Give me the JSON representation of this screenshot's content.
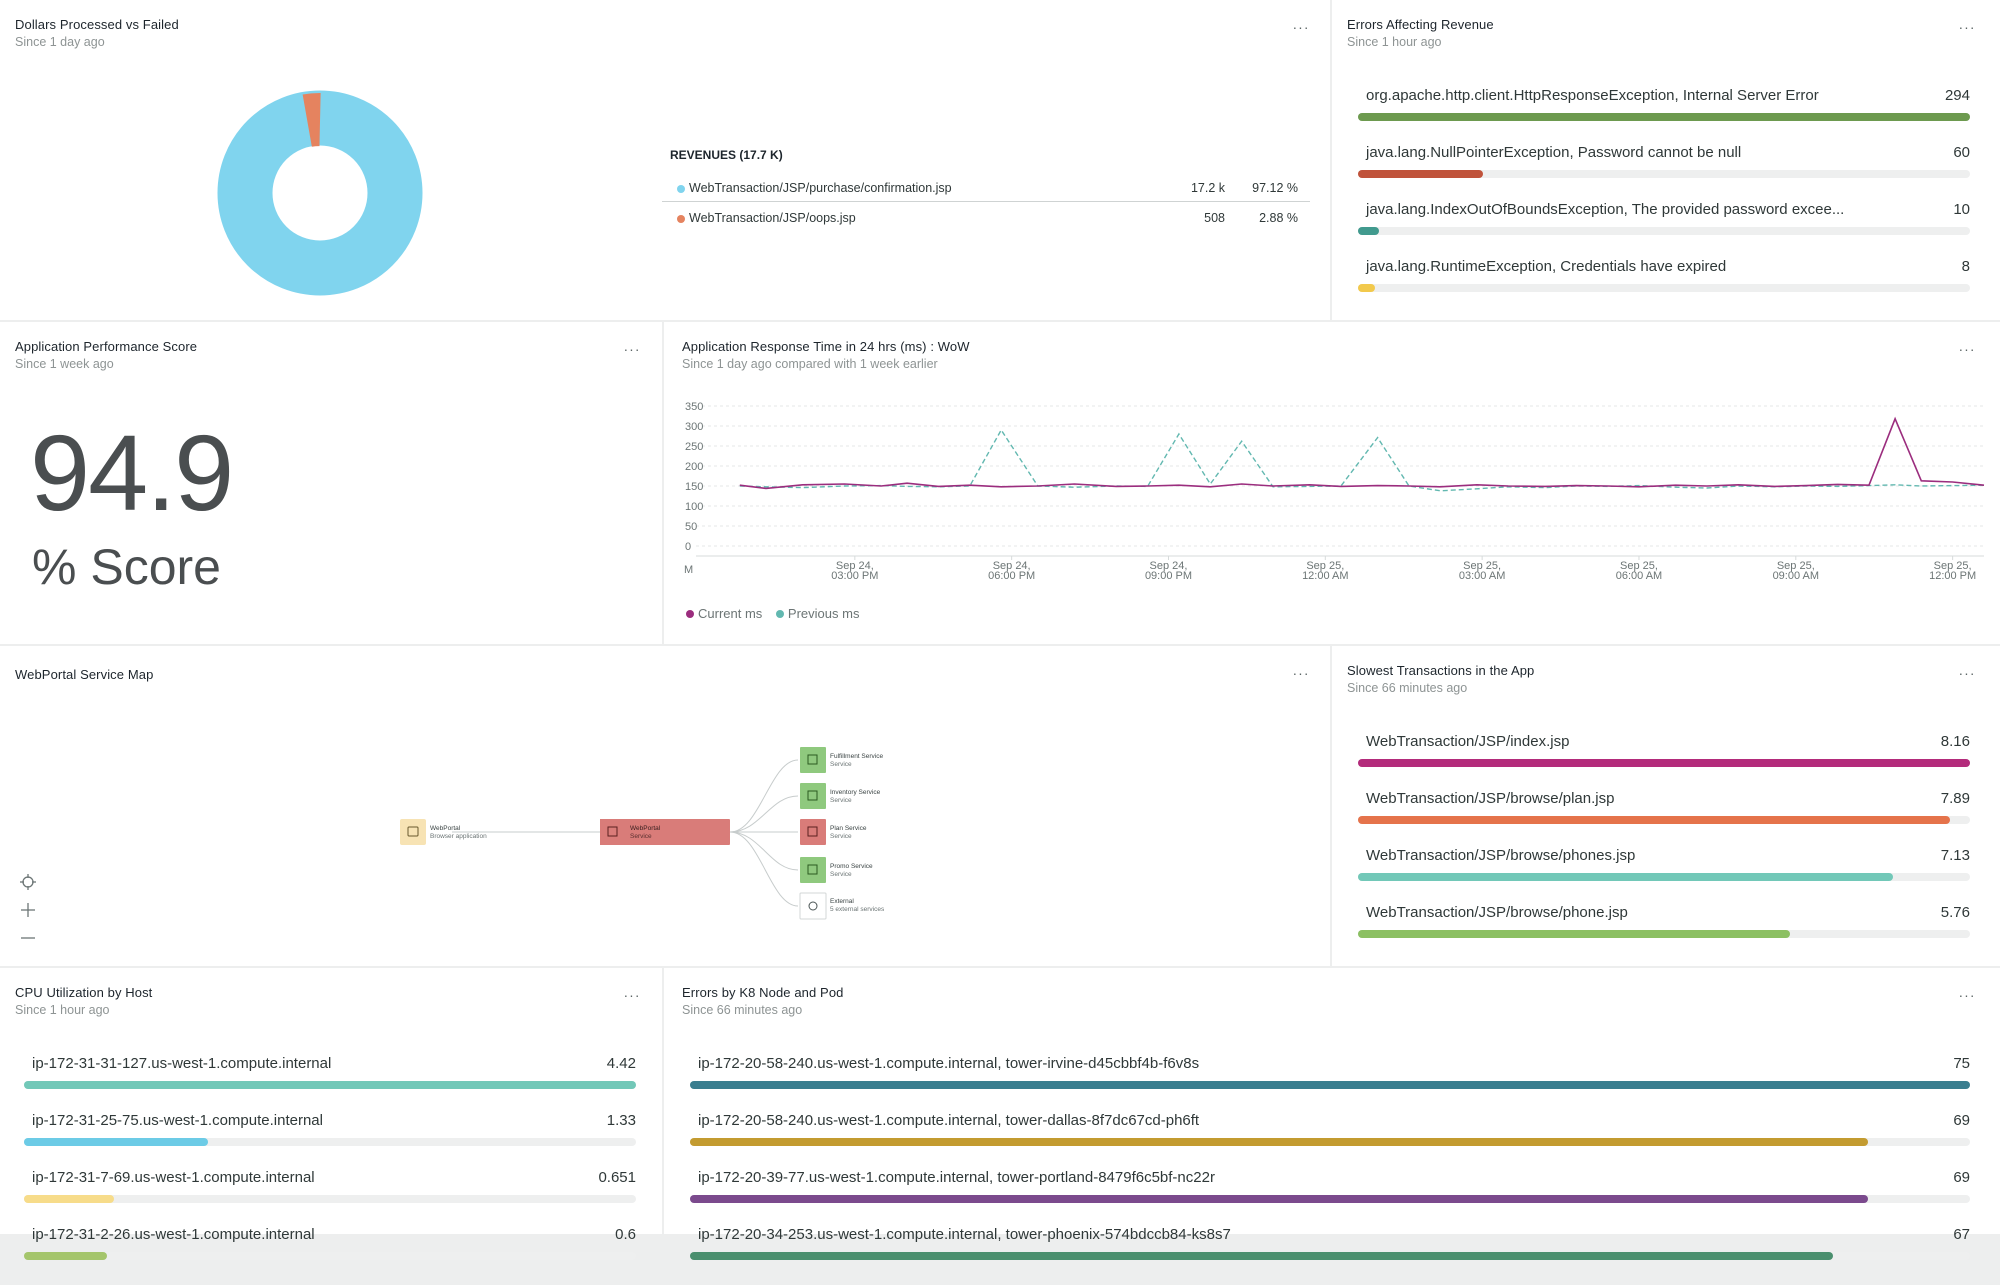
{
  "colors": {
    "menu_glyph": "#5b6565",
    "donut_main": "#80d4ee",
    "donut_small": "#e5835f",
    "current_series": "#9b2d7e",
    "previous_series": "#62b8b0"
  },
  "icons": {
    "menu": "ellipsis-icon",
    "map_locate": "crosshair-icon",
    "map_zoom_in": "plus-icon",
    "map_zoom_out": "minus-icon"
  },
  "menu_glyph": "···",
  "dollars_widget": {
    "title": "Dollars Processed vs Failed",
    "subtitle": "Since 1 day ago",
    "table_title": "REVENUES (17.7 K)",
    "rows": [
      {
        "name": "WebTransaction/JSP/purchase/confirmation.jsp",
        "count": "17.2 k",
        "percent": "97.12 %",
        "color": "#80d4ee"
      },
      {
        "name": "WebTransaction/JSP/oops.jsp",
        "count": "508",
        "percent": "2.88 %",
        "color": "#e5835f"
      }
    ]
  },
  "errors_widget": {
    "title": "Errors Affecting Revenue",
    "subtitle": "Since 1 hour ago",
    "items": [
      {
        "label": "org.apache.http.client.HttpResponseException, Internal Server Error",
        "value": "294",
        "fraction": 1.0,
        "color": "#6d9a4f"
      },
      {
        "label": "java.lang.NullPointerException, Password cannot be null",
        "value": "60",
        "fraction": 0.204,
        "color": "#c0533b"
      },
      {
        "label": "java.lang.IndexOutOfBoundsException, The provided password excee...",
        "value": "10",
        "fraction": 0.034,
        "color": "#419a8e"
      },
      {
        "label": "java.lang.RuntimeException, Credentials have expired",
        "value": "8",
        "fraction": 0.027,
        "color": "#f2c94c"
      }
    ]
  },
  "score_widget": {
    "title": "Application Performance Score",
    "subtitle": "Since 1 week ago",
    "value": "94.9",
    "unit": "% Score"
  },
  "response_widget": {
    "title": "Application Response Time in 24 hrs (ms) : WoW",
    "subtitle": "Since 1 day ago compared with 1 week earlier",
    "legend_current": "Current ms",
    "legend_previous": "Previous ms",
    "x_first_tick": "M"
  },
  "chart_data": {
    "type": "line",
    "title": "Application Response Time in 24 hrs (ms) : WoW",
    "ylim": [
      0,
      350
    ],
    "y_ticks": [
      0,
      50,
      100,
      150,
      200,
      250,
      300,
      350
    ],
    "x_start": "Sep 24, 12:00 PM",
    "x_tick_hours": [
      3,
      6,
      9,
      12,
      15,
      18,
      21,
      24
    ],
    "x_tick_labels": [
      [
        "Sep 24,",
        "03:00 PM"
      ],
      [
        "Sep 24,",
        "06:00 PM"
      ],
      [
        "Sep 24,",
        "09:00 PM"
      ],
      [
        "Sep 25,",
        "12:00 AM"
      ],
      [
        "Sep 25,",
        "03:00 AM"
      ],
      [
        "Sep 25,",
        "06:00 AM"
      ],
      [
        "Sep 25,",
        "09:00 AM"
      ],
      [
        "Sep 25,",
        "12:00 PM"
      ]
    ],
    "x_max_hours": 24.6,
    "legend_position": "bottom-left",
    "grid": true,
    "series": [
      {
        "name": "Current ms",
        "style": "solid",
        "color": "#9b2d7e",
        "x": [
          0.8,
          1.3,
          2,
          2.8,
          3.5,
          4,
          4.6,
          5.2,
          5.8,
          6.5,
          7.2,
          8,
          8.6,
          9.2,
          9.8,
          10.4,
          11,
          11.7,
          12.3,
          13,
          13.6,
          14.2,
          14.9,
          15.5,
          16.2,
          16.8,
          17.4,
          18,
          18.7,
          19.3,
          19.9,
          20.6,
          21.2,
          21.8,
          22.4,
          22.9,
          23.4,
          24.0,
          24.6
        ],
        "y": [
          152,
          144,
          153,
          155,
          150,
          157,
          149,
          152,
          148,
          150,
          155,
          149,
          150,
          152,
          148,
          155,
          150,
          153,
          149,
          151,
          150,
          148,
          153,
          150,
          149,
          151,
          150,
          148,
          152,
          150,
          153,
          149,
          151,
          154,
          152,
          318,
          163,
          160,
          152
        ]
      },
      {
        "name": "Previous ms",
        "style": "dashed",
        "color": "#62b8b0",
        "x": [
          0.8,
          1.3,
          2,
          2.8,
          3.5,
          4,
          4.6,
          5.2,
          5.8,
          6.5,
          7.2,
          8,
          8.6,
          9.2,
          9.8,
          10.4,
          11,
          11.7,
          12.3,
          13,
          13.6,
          14.2,
          14.9,
          15.5,
          16.2,
          16.8,
          17.4,
          18,
          18.7,
          19.3,
          19.9,
          20.6,
          21.2,
          21.8,
          22.4,
          22.9,
          23.4,
          24.0,
          24.6
        ],
        "y": [
          150,
          148,
          146,
          150,
          151,
          149,
          148,
          150,
          290,
          150,
          147,
          150,
          149,
          280,
          155,
          262,
          148,
          149,
          150,
          271,
          150,
          138,
          143,
          148,
          146,
          150,
          149,
          151,
          147,
          145,
          150,
          148,
          150,
          149,
          151,
          153,
          150,
          151,
          152
        ]
      }
    ]
  },
  "servicemap_widget": {
    "title": "WebPortal Service Map",
    "nodes": [
      {
        "name": "WebPortal",
        "sub": "Browser application"
      },
      {
        "name": "WebPortal",
        "sub": "Service"
      },
      {
        "name": "Fulfillment Service",
        "sub": "Service"
      },
      {
        "name": "Inventory Service",
        "sub": "Service"
      },
      {
        "name": "Plan Service",
        "sub": "Service"
      },
      {
        "name": "Promo Service",
        "sub": "Service"
      },
      {
        "name": "External",
        "sub": "5 external services"
      }
    ]
  },
  "slowest_widget": {
    "title": "Slowest Transactions in the App",
    "subtitle": "Since 66 minutes ago",
    "items": [
      {
        "label": "WebTransaction/JSP/index.jsp",
        "value": "8.16",
        "fraction": 1.0,
        "color": "#b32b7b"
      },
      {
        "label": "WebTransaction/JSP/browse/plan.jsp",
        "value": "7.89",
        "fraction": 0.967,
        "color": "#e5734b"
      },
      {
        "label": "WebTransaction/JSP/browse/phones.jsp",
        "value": "7.13",
        "fraction": 0.874,
        "color": "#72c8b8"
      },
      {
        "label": "WebTransaction/JSP/browse/phone.jsp",
        "value": "5.76",
        "fraction": 0.706,
        "color": "#8cc063"
      }
    ]
  },
  "cpu_widget": {
    "title": "CPU Utilization by Host",
    "subtitle": "Since 1 hour ago",
    "items": [
      {
        "label": "ip-172-31-31-127.us-west-1.compute.internal",
        "value": "4.42",
        "fraction": 1.0,
        "color": "#72c8b8"
      },
      {
        "label": "ip-172-31-25-75.us-west-1.compute.internal",
        "value": "1.33",
        "fraction": 0.301,
        "color": "#6ccbe6"
      },
      {
        "label": "ip-172-31-7-69.us-west-1.compute.internal",
        "value": "0.651",
        "fraction": 0.147,
        "color": "#f7dc8a"
      },
      {
        "label": "ip-172-31-2-26.us-west-1.compute.internal",
        "value": "0.6",
        "fraction": 0.136,
        "color": "#a4c56b"
      }
    ]
  },
  "k8_widget": {
    "title": "Errors by K8 Node and Pod",
    "subtitle": "Since 66 minutes ago",
    "items": [
      {
        "label": "ip-172-20-58-240.us-west-1.compute.internal, tower-irvine-d45cbbf4b-f6v8s",
        "value": "75",
        "fraction": 1.0,
        "color": "#3a7e8f"
      },
      {
        "label": "ip-172-20-58-240.us-west-1.compute.internal, tower-dallas-8f7dc67cd-ph6ft",
        "value": "69",
        "fraction": 0.92,
        "color": "#c39b30"
      },
      {
        "label": "ip-172-20-39-77.us-west-1.compute.internal, tower-portland-8479f6c5bf-nc22r",
        "value": "69",
        "fraction": 0.92,
        "color": "#7b4a8d"
      },
      {
        "label": "ip-172-20-34-253.us-west-1.compute.internal, tower-phoenix-574bdccb84-ks8s7",
        "value": "67",
        "fraction": 0.893,
        "color": "#4a8f6e"
      }
    ]
  }
}
